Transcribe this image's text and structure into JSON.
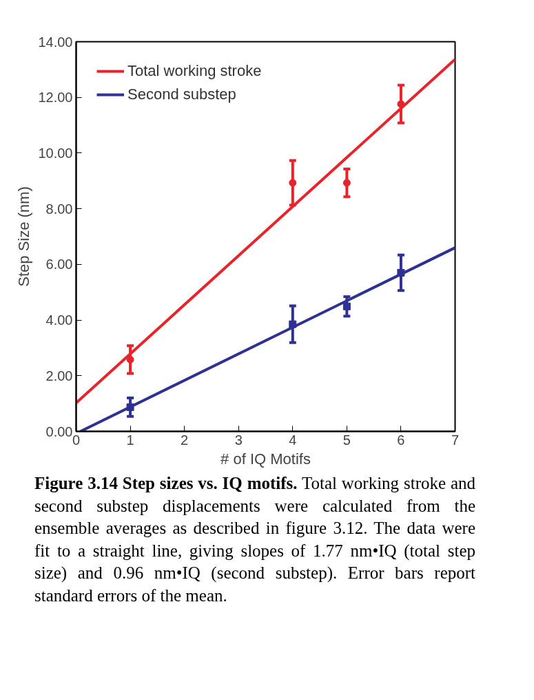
{
  "chart_data": {
    "type": "scatter",
    "xlabel": "# of IQ Motifs",
    "ylabel": "Step Size (nm)",
    "xlim": [
      0,
      7
    ],
    "xticks": [
      0,
      1,
      2,
      3,
      4,
      5,
      6,
      7
    ],
    "ylim": [
      0,
      14
    ],
    "yticks": [
      {
        "value": 0,
        "label": "0.00"
      },
      {
        "value": 2,
        "label": "2.00"
      },
      {
        "value": 4,
        "label": "4.00"
      },
      {
        "value": 6,
        "label": "6.00"
      },
      {
        "value": 8,
        "label": "8.00"
      },
      {
        "value": 10,
        "label": "10.00"
      },
      {
        "value": 12,
        "label": "12.00"
      },
      {
        "value": 14,
        "label": "14.00"
      }
    ],
    "grid": false,
    "legend": "top left",
    "series": [
      {
        "color": "#e8232a",
        "marker": "circle",
        "x": [
          1,
          4,
          5,
          6
        ],
        "values": [
          2.58,
          8.93,
          8.93,
          11.76
        ],
        "errors": [
          0.5,
          0.8,
          0.5,
          0.68
        ]
      },
      {
        "color": "#2e3192",
        "marker": "square",
        "x": [
          1,
          4,
          5,
          6
        ],
        "values": [
          0.87,
          3.85,
          4.49,
          5.7
        ],
        "errors": [
          0.33,
          0.66,
          0.35,
          0.64
        ]
      },
      {
        "type": "line",
        "name": "Total working stroke",
        "color": "#e8232a",
        "x": [
          0,
          7
        ],
        "values": [
          1.02,
          13.37
        ]
      },
      {
        "type": "line",
        "name": "Second substep",
        "color": "#2e3192",
        "x": [
          0.08,
          7
        ],
        "values": [
          0,
          6.6
        ]
      }
    ],
    "annotations": [
      "Figure 3.14  Step sizes vs. IQ motifs.",
      "Total working stroke and second substep displacements were calculated from the ensemble averages as described in figure 3.12. The data were fit to a straight line, giving slopes of 1.77 nm•IQ (total step size) and 0.96 nm•IQ (second substep). Error bars report standard errors of the mean."
    ]
  }
}
